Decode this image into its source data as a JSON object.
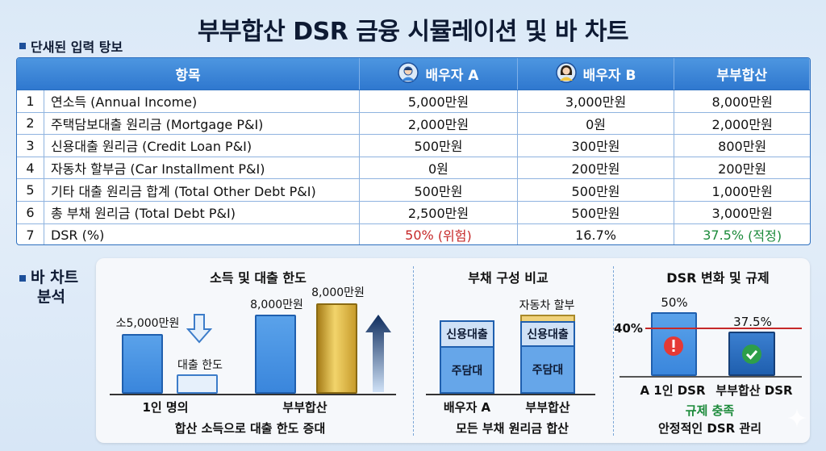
{
  "title": "부부합산 DSR 금융 시뮬레이션 및 바 차트",
  "input_section": "단새된 입력 탕보",
  "table": {
    "headers": {
      "item": "항목",
      "a": "배우자 A",
      "b": "배우자 B",
      "total": "부부합산"
    },
    "rows": [
      {
        "num": "1",
        "item": "연소득 (Annual Income)",
        "a": "5,000만원",
        "b": "3,000만원",
        "total": "8,000만원"
      },
      {
        "num": "2",
        "item": "주택담보대출 원리금 (Mortgage P&I)",
        "a": "2,000만원",
        "b": "0원",
        "total": "2,000만원"
      },
      {
        "num": "3",
        "item": "신용대출 원리금 (Credit Loan P&I)",
        "a": "500만원",
        "b": "300만원",
        "total": "800만원"
      },
      {
        "num": "4",
        "item": "자동차 할부금 (Car Installment P&I)",
        "a": "0원",
        "b": "200만원",
        "total": "200만원"
      },
      {
        "num": "5",
        "item": "기타 대출 원리금 합계 (Total Other Debt P&I)",
        "a": "500만원",
        "b": "500만원",
        "total": "1,000만원"
      },
      {
        "num": "6",
        "item": "총 부채 원리금 (Total Debt P&I)",
        "a": "2,500만원",
        "b": "500만원",
        "total": "3,000만원"
      }
    ],
    "dsr_row": {
      "num": "7",
      "item": "DSR (%)",
      "a_value": "50%",
      "a_note": "(위험)",
      "b": "16.7%",
      "total_value": "37.5%",
      "total_note": "(적정)"
    }
  },
  "chart_section": {
    "line1": "바 차트",
    "line2": "분석"
  },
  "chart1": {
    "title": "소득 및 대출 한도",
    "single_income_label": "소5,000만원",
    "loan_limit_label": "대출 한도",
    "couple_income_label": "8,000만원",
    "couple_limit_label": "8,000만원",
    "x_single": "1인 명의",
    "x_couple": "부부합산",
    "caption": "합산 소득으로 대출 한도 증대"
  },
  "chart2": {
    "title": "부채 구성 비교",
    "a_top": "신용대출",
    "a_bottom": "주담대",
    "car_label": "자동차 할부",
    "t_mid": "신용대출",
    "t_bottom": "주담대",
    "x_a": "배우자 A",
    "x_total": "부부합산",
    "caption": "모든 부채 원리금 합산"
  },
  "chart3": {
    "title": "DSR 변화 및 규제",
    "limit_label": "40%",
    "bar1_value_label": "50%",
    "bar2_value_label": "37.5%",
    "x1": "A 1인 DSR",
    "x2": "부부합산 DSR",
    "caption1": "규제 충족",
    "caption2": "안정적인 DSR 관리"
  },
  "chart_data": [
    {
      "type": "bar",
      "title": "소득 및 대출 한도",
      "categories": [
        "1인 명의",
        "부부합산"
      ],
      "series": [
        {
          "values": [
            5000,
            8000
          ]
        }
      ]
    },
    {
      "type": "bar",
      "title": "부채 구성 비교",
      "categories": [
        "배우자 A",
        "부부합산"
      ],
      "series": [
        {
          "name": "주담대"
        },
        {
          "name": "신용대출"
        },
        {
          "name": "자동차 할부"
        }
      ]
    },
    {
      "type": "bar",
      "title": "DSR 변화 및 규제",
      "categories": [
        "A 1인 DSR",
        "부부합산 DSR"
      ],
      "values": [
        50,
        37.5
      ],
      "reference_line": 40
    }
  ],
  "colors": {
    "accent": "#2f78cf",
    "danger": "#c62828",
    "ok": "#1b8a3a",
    "gold": "#e8c455"
  }
}
